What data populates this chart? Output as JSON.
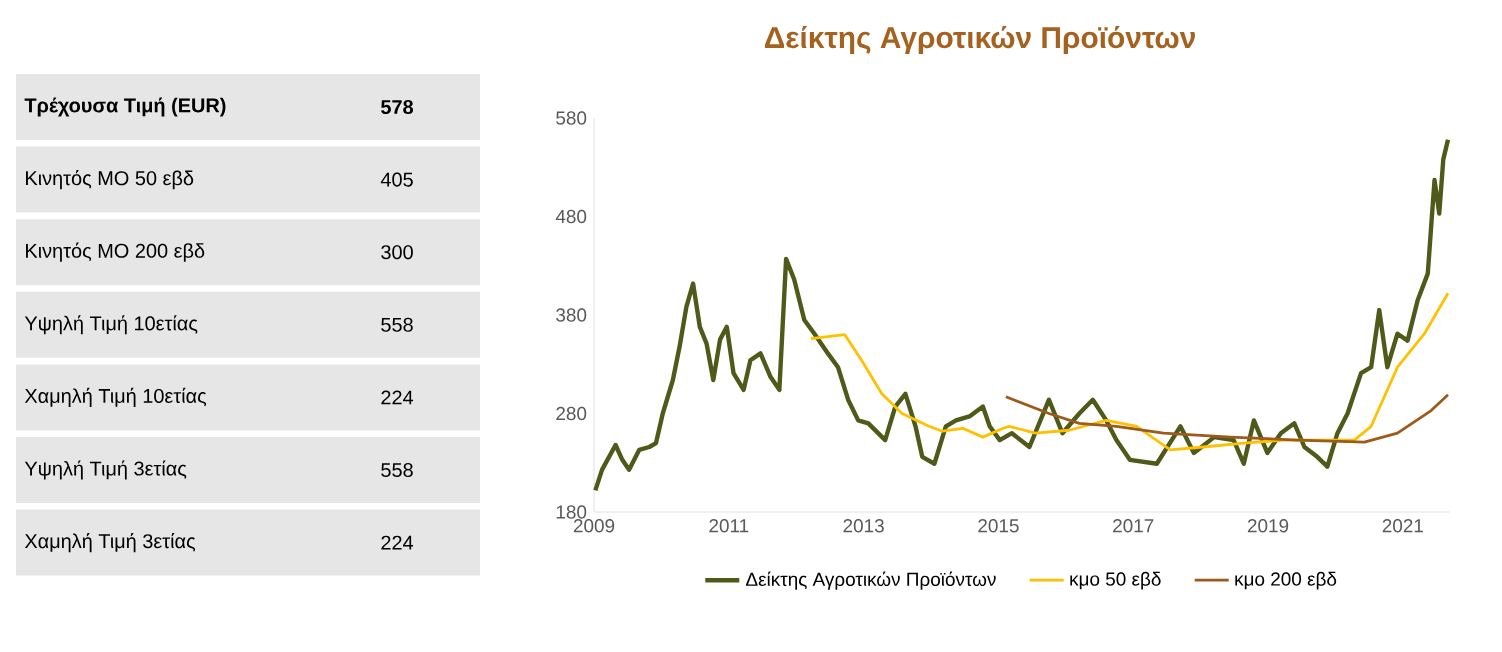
{
  "chart_data": [
    {
      "type": "other",
      "categories": [
        "Τρέχουσα Τιμή (EUR)",
        "Κινητός ΜΟ 50 εβδ",
        "Κινητός ΜΟ 200 εβδ",
        "Υψηλή Τιμή 10ετίας",
        "Χαμηλή Τιμή 10ετίας",
        "Υψηλή Τιμή 3ετίας",
        "Χαμηλή Τιμή 3ετίας"
      ],
      "values": [
        578,
        405,
        300,
        558,
        224,
        558,
        224
      ],
      "data_labels": true
    },
    {
      "type": "line",
      "title": "Δείκτης Αγροτικών Προϊόντων",
      "xlim": [
        2009,
        2021.7
      ],
      "xticks": [
        2009,
        2011,
        2013,
        2015,
        2017,
        2019,
        2021
      ],
      "ylim": [
        180,
        580
      ],
      "yticks": [
        180,
        280,
        380,
        480,
        580
      ],
      "legend": "bottom",
      "series": [
        {
          "name": "Δείκτης Αγροτικών Προϊόντων",
          "color": "#4f5a1a",
          "x": [
            2009.02,
            2009.12,
            2009.32,
            2009.42,
            2009.52,
            2009.67,
            2009.82,
            2009.92,
            2010.02,
            2010.17,
            2010.27,
            2010.37,
            2010.47,
            2010.57,
            2010.67,
            2010.77,
            2010.87,
            2010.97,
            2011.07,
            2011.22,
            2011.32,
            2011.47,
            2011.62,
            2011.75,
            2011.85,
            2011.97,
            2012.12,
            2012.27,
            2012.47,
            2012.62,
            2012.77,
            2012.92,
            2013.07,
            2013.32,
            2013.47,
            2013.62,
            2013.77,
            2013.87,
            2014.05,
            2014.22,
            2014.37,
            2014.57,
            2014.77,
            2014.87,
            2015.02,
            2015.2,
            2015.46,
            2015.75,
            2015.95,
            2016.2,
            2016.4,
            2016.6,
            2016.75,
            2016.95,
            2017.35,
            2017.7,
            2017.9,
            2018.2,
            2018.49,
            2018.64,
            2018.79,
            2018.99,
            2019.19,
            2019.39,
            2019.54,
            2019.73,
            2019.88,
            2020.03,
            2020.18,
            2020.38,
            2020.53,
            2020.65,
            2020.77,
            2020.92,
            2021.07,
            2021.22,
            2021.37,
            2021.47,
            2021.54,
            2021.6,
            2021.67
          ],
          "values": [
            202,
            223,
            248,
            233,
            223,
            243,
            246,
            250,
            280,
            314,
            348,
            388,
            412,
            368,
            351,
            314,
            355,
            368,
            321,
            304,
            334,
            341,
            317,
            304,
            437,
            416,
            375,
            361,
            341,
            327,
            294,
            273,
            270,
            253,
            287,
            300,
            267,
            236,
            229,
            267,
            273,
            277,
            287,
            267,
            253,
            260,
            246,
            294,
            260,
            280,
            294,
            273,
            253,
            233,
            229,
            267,
            240,
            256,
            253,
            229,
            273,
            240,
            260,
            270,
            246,
            236,
            226,
            260,
            280,
            321,
            327,
            385,
            327,
            361,
            354,
            395,
            422,
            517,
            483,
            538,
            558
          ]
        },
        {
          "name": "κμο 50 εβδ",
          "color": "#ffc000",
          "x": [
            2012.22,
            2012.72,
            2012.97,
            2013.27,
            2013.57,
            2013.97,
            2014.17,
            2014.47,
            2014.77,
            2015.07,
            2015.16,
            2015.55,
            2016.05,
            2016.6,
            2017.05,
            2017.55,
            2018.04,
            2018.64,
            2019.24,
            2019.83,
            2020.28,
            2020.53,
            2020.92,
            2021.32,
            2021.67
          ],
          "values": [
            356,
            360,
            334,
            300,
            280,
            267,
            262,
            265,
            256,
            265,
            267,
            260,
            263,
            273,
            267,
            243,
            246,
            250,
            253,
            253,
            253,
            267,
            327,
            361,
            402
          ]
        },
        {
          "name": "κμο 200 εβδ",
          "color": "#9c5a1c",
          "x": [
            2015.11,
            2015.75,
            2016.2,
            2016.75,
            2017.45,
            2018.44,
            2019.44,
            2020.43,
            2020.92,
            2021.42,
            2021.67
          ],
          "values": [
            297,
            280,
            270,
            267,
            260,
            256,
            253,
            251,
            260,
            283,
            299
          ]
        }
      ]
    }
  ]
}
